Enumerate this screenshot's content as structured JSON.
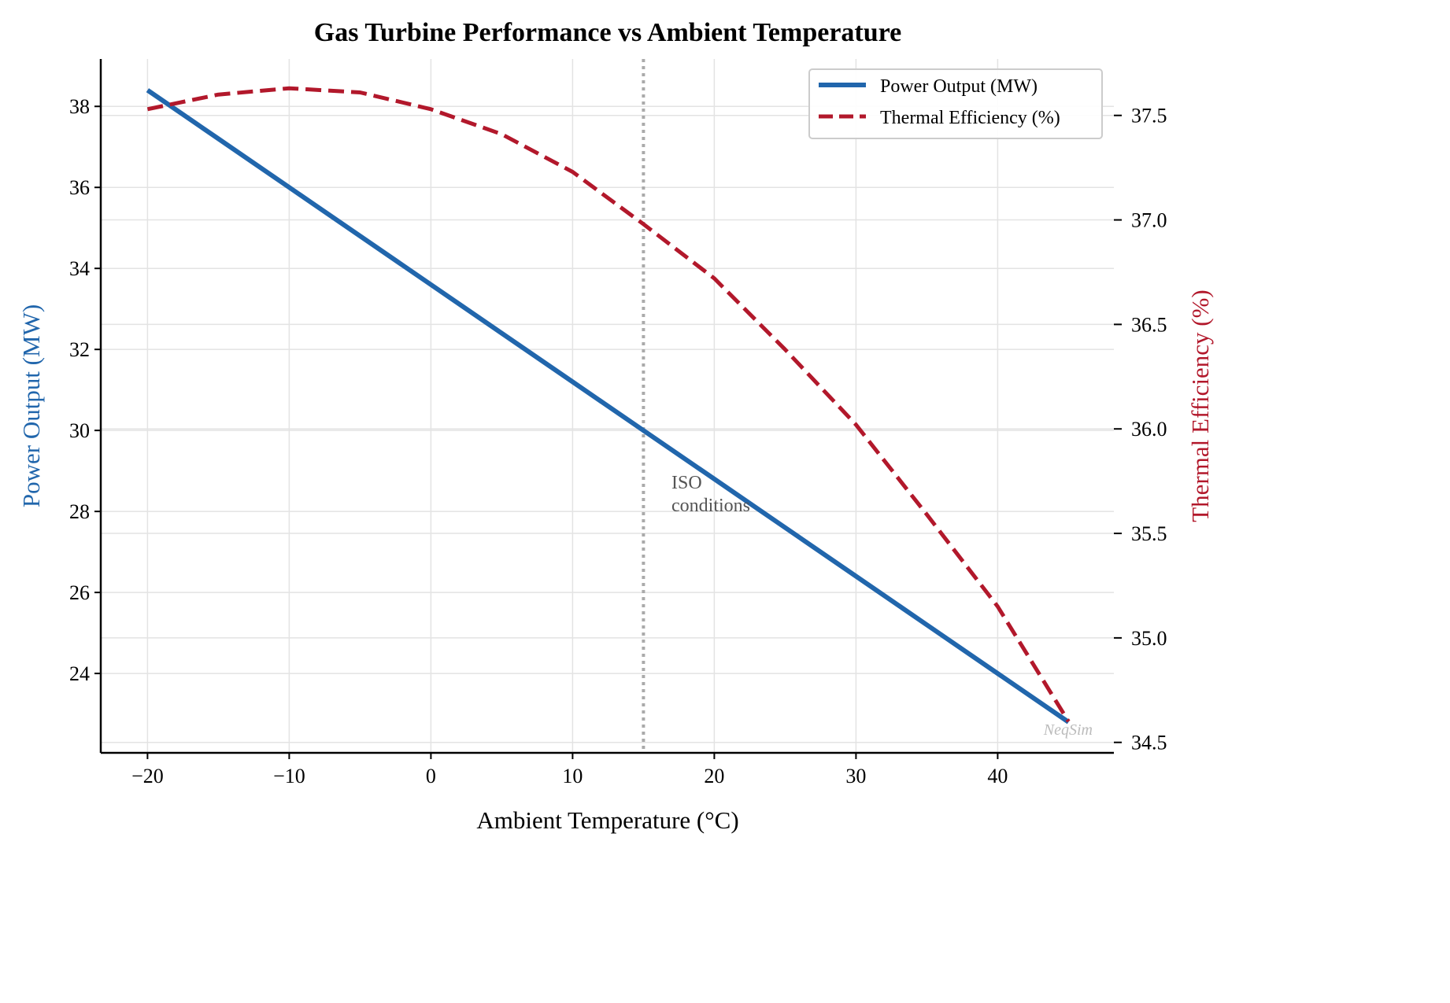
{
  "chart_data": {
    "type": "line",
    "title": "Gas Turbine Performance vs Ambient Temperature",
    "xlabel": "Ambient Temperature (°C)",
    "ylabel_left": "Power Output (MW)",
    "ylabel_right": "Thermal Efficiency (%)",
    "xlim": [
      -23.3,
      48.2
    ],
    "ylim_left": [
      22.04,
      39.17
    ],
    "ylim_right": [
      34.45,
      37.77
    ],
    "x_ticks": [
      -20,
      -10,
      0,
      10,
      20,
      30,
      40
    ],
    "x_tick_labels": [
      "−20",
      "−10",
      "0",
      "10",
      "20",
      "30",
      "40"
    ],
    "y_left_ticks": [
      24,
      26,
      28,
      30,
      32,
      34,
      36,
      38
    ],
    "y_right_ticks": [
      34.5,
      35.0,
      35.5,
      36.0,
      36.5,
      37.0,
      37.5
    ],
    "y_right_tick_labels": [
      "34.5",
      "35.0",
      "35.5",
      "36.0",
      "36.5",
      "37.0",
      "37.5"
    ],
    "grid": true,
    "legend_position": "top-right",
    "x": [
      -20,
      -15,
      -10,
      -5,
      0,
      5,
      10,
      15,
      20,
      25,
      30,
      35,
      40,
      45
    ],
    "series": [
      {
        "name": "Power Output (MW)",
        "axis": "left",
        "style": "solid",
        "color": "#2166ac",
        "values": [
          38.4,
          37.2,
          36.0,
          34.8,
          33.6,
          32.4,
          31.2,
          30.0,
          28.8,
          27.6,
          26.4,
          25.2,
          24.0,
          22.8
        ]
      },
      {
        "name": "Thermal Efficiency (%)",
        "axis": "right",
        "style": "dashed",
        "color": "#b2182b",
        "values": [
          37.53,
          37.6,
          37.63,
          37.61,
          37.53,
          37.41,
          37.23,
          36.98,
          36.72,
          36.38,
          36.02,
          35.59,
          35.15,
          34.6
        ]
      }
    ],
    "reference_line": {
      "x": 15,
      "style": "dotted",
      "color": "#aaaaaa"
    },
    "annotation": {
      "lines": [
        "ISO",
        "conditions"
      ],
      "x": 17,
      "y": 28.8
    },
    "watermark": "NeqSim"
  }
}
